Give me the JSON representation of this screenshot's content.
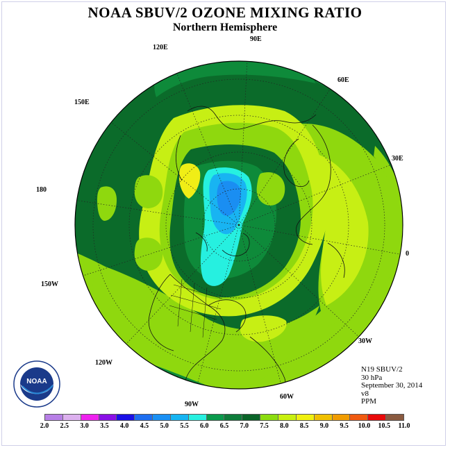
{
  "title": "NOAA SBUV/2 OZONE MIXING RATIO",
  "subtitle": "Northern Hemisphere",
  "longitude_labels": {
    "lon_90e": "90E",
    "lon_60e": "60E",
    "lon_30e": "30E",
    "lon_0": "0",
    "lon_30w": "30W",
    "lon_60w": "60W",
    "lon_90w": "90W",
    "lon_120w": "120W",
    "lon_150w": "150W",
    "lon_180": "180",
    "lon_150e": "150E",
    "lon_120e": "120E"
  },
  "info": {
    "instrument": "N19 SBUV/2",
    "level": "30 hPa",
    "date": "September 30, 2014",
    "version": "v8",
    "units": "PPM"
  },
  "logo_text": "NOAA",
  "colorbar": {
    "ticks": [
      "2.0",
      "2.5",
      "3.0",
      "3.5",
      "4.0",
      "4.5",
      "5.0",
      "5.5",
      "6.0",
      "6.5",
      "7.0",
      "7.5",
      "8.0",
      "8.5",
      "9.0",
      "9.5",
      "10.0",
      "10.5",
      "11.0"
    ],
    "colors": [
      "#b77fe6",
      "#dcb0ee",
      "#ee22ee",
      "#8a10e6",
      "#1a10e6",
      "#1e6ef0",
      "#1a90f4",
      "#16b4f2",
      "#28f0e0",
      "#0a9a4c",
      "#0e7c3a",
      "#0a6428",
      "#8cdc10",
      "#c8f010",
      "#f0f010",
      "#f0c000",
      "#f09c00",
      "#f05a10",
      "#e80a0a",
      "#8a5a40"
    ]
  },
  "map_colors": {
    "dark_green": "#0b6b2a",
    "mid_green": "#0e8a3a",
    "medium_green": "#1a9c42",
    "lime": "#8fd80e",
    "yellow_green": "#c7ef14",
    "yellow": "#f0ee16",
    "cyan": "#26f0e0",
    "light_blue": "#18b4f2",
    "blue": "#1a8ef2"
  }
}
